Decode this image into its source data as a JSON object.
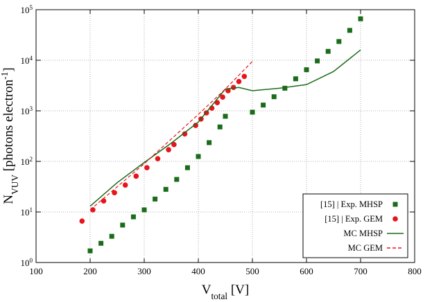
{
  "chart_data": {
    "type": "scatter-line",
    "x_label": "V_{total} [V]",
    "y_label": "N_{VUV} [photons electron^{-1}]",
    "xlim": [
      100,
      800
    ],
    "xticks": [
      100,
      200,
      300,
      400,
      500,
      600,
      700,
      800
    ],
    "ylim": [
      1,
      100000
    ],
    "log_y": true,
    "grid": true,
    "legend": "lower right",
    "yticks": [
      {
        "value": 1,
        "label": "10^{0}"
      },
      {
        "value": 10,
        "label": "10^{1}"
      },
      {
        "value": 100,
        "label": "10^{2}"
      },
      {
        "value": 1000,
        "label": "10^{3}"
      },
      {
        "value": 10000,
        "label": "10^{4}"
      },
      {
        "value": 100000,
        "label": "10^{5}"
      }
    ],
    "series": [
      {
        "name": "[15] | Exp. MHSP",
        "color": "#1a6b1a",
        "marker": "square",
        "x": [
          200,
          220,
          240,
          260,
          280,
          300,
          320,
          340,
          360,
          380,
          400,
          420,
          440,
          450,
          500,
          520,
          540,
          560,
          580,
          600,
          620,
          640,
          660,
          680,
          700
        ],
        "values": [
          1.7,
          2.4,
          3.3,
          5.5,
          8,
          11,
          18,
          28,
          44,
          75,
          125,
          235,
          480,
          780,
          940,
          1300,
          1900,
          2800,
          4300,
          6500,
          9700,
          15000,
          23500,
          39000,
          66000
        ]
      },
      {
        "name": "[15] | Exp. GEM",
        "color": "#e8141b",
        "marker": "circle",
        "x": [
          185,
          205,
          225,
          245,
          265,
          285,
          305,
          325,
          345,
          355,
          375,
          395,
          405,
          415,
          425,
          435,
          445,
          455,
          465,
          475,
          485
        ],
        "values": [
          6.6,
          11,
          16.5,
          24,
          34,
          51,
          75,
          113,
          170,
          215,
          350,
          515,
          690,
          910,
          1130,
          1450,
          1870,
          2500,
          2900,
          3800,
          4800
        ]
      },
      {
        "name": "MC MHSP",
        "color": "#1a6b1a",
        "marker": "line",
        "x": [
          200,
          250,
          300,
          350,
          400,
          450,
          475,
          500,
          550,
          600,
          650,
          700
        ],
        "values": [
          13,
          38,
          95,
          230,
          600,
          2700,
          2900,
          2500,
          2800,
          3300,
          6000,
          16000
        ]
      },
      {
        "name": "MC GEM",
        "color": "#e8141b",
        "marker": "dash",
        "x": [
          200,
          300,
          400,
          450,
          500
        ],
        "values": [
          11,
          90,
          850,
          2700,
          9500
        ]
      }
    ]
  }
}
